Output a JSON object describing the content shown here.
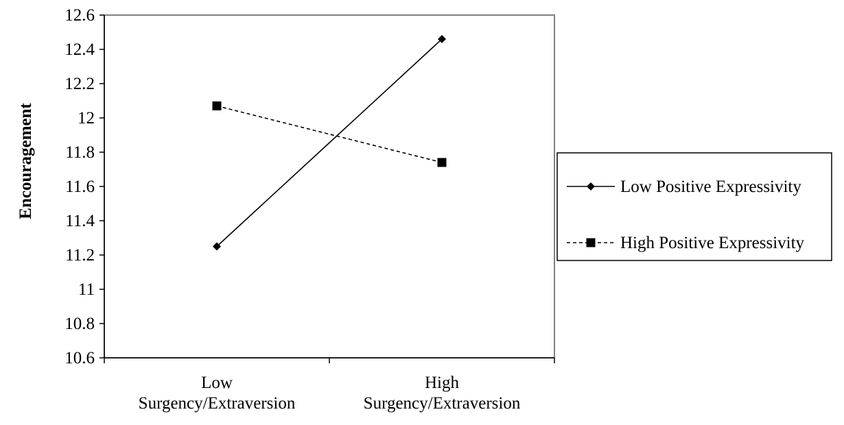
{
  "chart_data": {
    "type": "line",
    "title": "",
    "xlabel": "",
    "ylabel": "Encouragement",
    "categories": [
      [
        "Low",
        "Surgency/Extraversion"
      ],
      [
        "High",
        "Surgency/Extraversion"
      ]
    ],
    "ylim": [
      10.6,
      12.6
    ],
    "yticks": [
      10.6,
      10.8,
      11,
      11.2,
      11.4,
      11.6,
      11.8,
      12,
      12.2,
      12.4,
      12.6
    ],
    "ytick_labels": [
      "10.6",
      "10.8",
      "11",
      "11.2",
      "11.4",
      "11.6",
      "11.8",
      "12",
      "12.2",
      "12.4",
      "12.6"
    ],
    "grid": false,
    "legend_position": "right",
    "series": [
      {
        "name": "Low Positive Expressivity",
        "values": [
          11.25,
          12.46
        ],
        "marker": "diamond",
        "line_style": "solid",
        "color": "#000000"
      },
      {
        "name": "High Positive Expressivity",
        "values": [
          12.07,
          11.74
        ],
        "marker": "square",
        "line_style": "dashed",
        "color": "#000000"
      }
    ]
  }
}
